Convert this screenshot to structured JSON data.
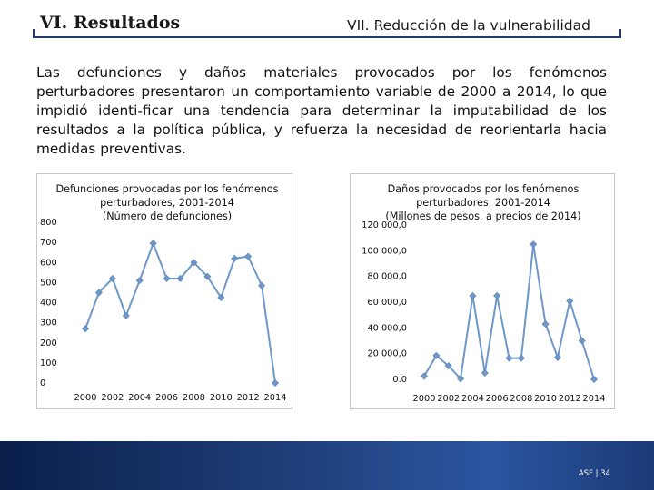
{
  "header": {
    "left_title": "VI. Resultados",
    "right_title": "VII. Reducción de la vulnerabilidad"
  },
  "body_text": "Las defunciones y daños materiales provocados por los fenómenos perturbadores presentaron un comportamiento variable de 2000 a 2014, lo que impidió identi-ficar una tendencia para determinar la imputabilidad de los resultados a la política pública, y refuerza la necesidad de reorientarla hacia medidas preventivas.",
  "chart_data": [
    {
      "type": "line",
      "title": [
        "Defunciones provocadas por los fenómenos",
        "perturbadores, 2001-2014",
        "(Número de defunciones)"
      ],
      "x": [
        2000,
        2001,
        2002,
        2003,
        2004,
        2005,
        2006,
        2007,
        2008,
        2009,
        2010,
        2011,
        2012,
        2013,
        2014
      ],
      "values": [
        270,
        450,
        520,
        335,
        510,
        695,
        520,
        520,
        600,
        530,
        425,
        620,
        630,
        485,
        0
      ],
      "x_ticks": [
        "2000",
        "2002",
        "2004",
        "2006",
        "2008",
        "2010",
        "2012",
        "2014"
      ],
      "y_ticks": [
        "0",
        "100",
        "200",
        "300",
        "400",
        "500",
        "600",
        "700",
        "800"
      ],
      "ylim": [
        0,
        800
      ],
      "xlim": [
        2000,
        2014
      ],
      "series_color": "#6f98c8",
      "grid": false
    },
    {
      "type": "line",
      "title": [
        "Daños provocados por los fenómenos",
        "perturbadores, 2001-2014",
        "(Millones de pesos, a precios de 2014)"
      ],
      "x": [
        2000,
        2001,
        2002,
        2003,
        2004,
        2005,
        2006,
        2007,
        2008,
        2009,
        2010,
        2011,
        2012,
        2013,
        2014
      ],
      "values": [
        2500,
        18500,
        10500,
        500,
        65000,
        5000,
        65000,
        16500,
        16500,
        105000,
        43000,
        17000,
        61000,
        30000,
        0
      ],
      "x_ticks": [
        "2000",
        "2002",
        "2004",
        "2006",
        "2008",
        "2010",
        "2012",
        "2014"
      ],
      "y_ticks": [
        "0.0",
        "20 000,0",
        "40 000,0",
        "60 000,0",
        "80 000,0",
        "100 000,0",
        "120 000,0"
      ],
      "ylim": [
        0,
        120000
      ],
      "xlim": [
        2000,
        2014
      ],
      "series_color": "#6f98c8",
      "grid": false
    }
  ],
  "footer": {
    "page_label": "ASF | 34"
  }
}
